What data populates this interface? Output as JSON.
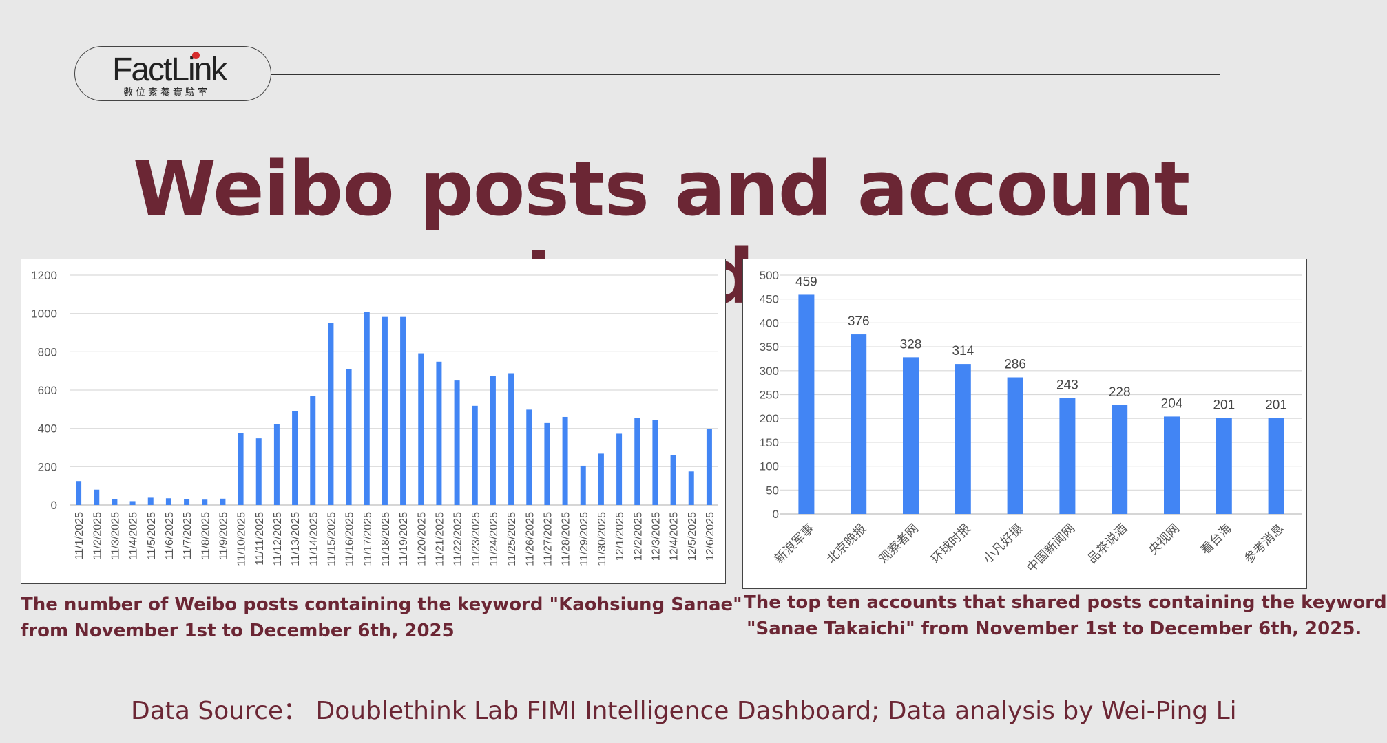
{
  "logo": {
    "name": "FactLink",
    "subtitle": "數位素養實驗室"
  },
  "title": "Weibo posts and account trends",
  "captions": {
    "left": [
      "The number of Weibo posts containing the keyword \"Kaohsiung Sanae\"",
      "from November 1st to December 6th, 2025"
    ],
    "right": [
      "The top ten accounts that shared posts containing the keyword",
      "\"Sanae Takaichi\" from November 1st to December 6th, 2025."
    ]
  },
  "source": "Data Source： Doublethink Lab FIMI Intelligence Dashboard; Data analysis by Wei-Ping Li",
  "colors": {
    "bar": "#4285f4",
    "title": "#6b2634",
    "background": "#e8e8e8",
    "logo_dot": "#d62c2c"
  },
  "chart_data": [
    {
      "type": "bar",
      "categories": [
        "11/1/2025",
        "11/2/2025",
        "11/3/2025",
        "11/4/2025",
        "11/5/2025",
        "11/6/2025",
        "11/7/2025",
        "11/8/2025",
        "11/9/2025",
        "11/10/2025",
        "11/11/2025",
        "11/12/2025",
        "11/13/2025",
        "11/14/2025",
        "11/15/2025",
        "11/16/2025",
        "11/17/2025",
        "11/18/2025",
        "11/19/2025",
        "11/20/2025",
        "11/21/2025",
        "11/22/2025",
        "11/23/2025",
        "11/24/2025",
        "11/25/2025",
        "11/26/2025",
        "11/27/2025",
        "11/28/2025",
        "11/29/2025",
        "11/30/2025",
        "12/1/2025",
        "12/2/2025",
        "12/3/2025",
        "12/4/2025",
        "12/5/2025",
        "12/6/2025"
      ],
      "values": [
        125,
        80,
        30,
        20,
        38,
        35,
        32,
        28,
        33,
        375,
        348,
        422,
        490,
        570,
        952,
        710,
        1008,
        982,
        982,
        792,
        748,
        650,
        518,
        675,
        688,
        498,
        428,
        460,
        205,
        268,
        372,
        455,
        445,
        260,
        175,
        398
      ],
      "ylim": [
        0,
        1200
      ],
      "yticks": [
        0,
        200,
        400,
        600,
        800,
        1000,
        1200
      ],
      "grid": true,
      "legend": "none"
    },
    {
      "type": "bar",
      "categories": [
        "新浪军事",
        "北京晚报",
        "观察者网",
        "环球时报",
        "小凡好摄",
        "中国新闻网",
        "品茶说酒",
        "央视网",
        "看台海",
        "参考消息"
      ],
      "values": [
        459,
        376,
        328,
        314,
        286,
        243,
        228,
        204,
        201,
        201
      ],
      "data_labels": [
        "459",
        "376",
        "328",
        "314",
        "286",
        "243",
        "228",
        "204",
        "201",
        "201"
      ],
      "ylim": [
        0,
        500
      ],
      "yticks": [
        0,
        50,
        100,
        150,
        200,
        250,
        300,
        350,
        400,
        450,
        500
      ],
      "grid": true,
      "legend": "none"
    }
  ]
}
